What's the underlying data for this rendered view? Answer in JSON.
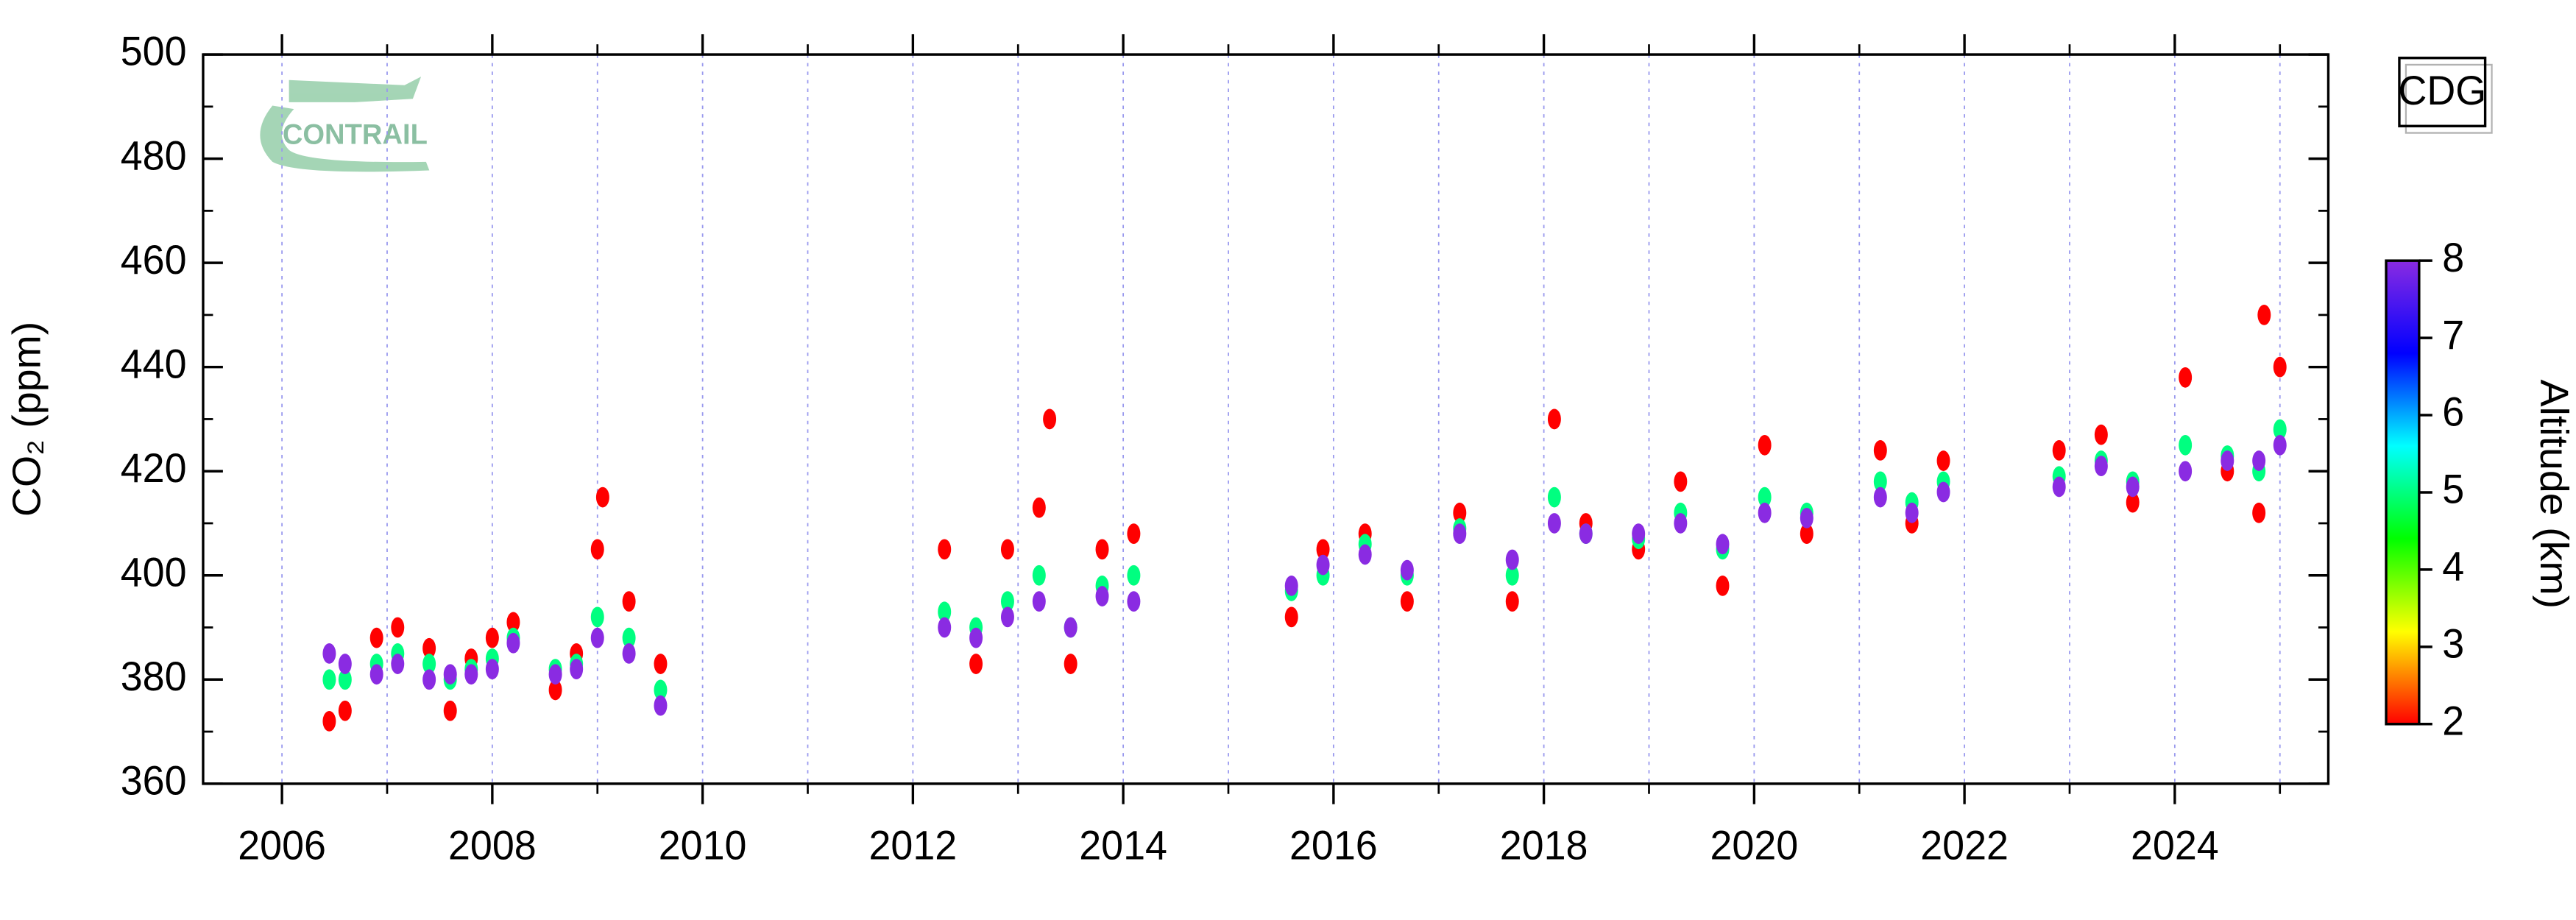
{
  "chart_data": {
    "type": "scatter",
    "logo": "CONTRAIL",
    "station": "CDG",
    "ylabel": "CO₂ (ppm)",
    "colorbar_label": "Altitude (km)",
    "xlim": [
      2005.25,
      2025.46
    ],
    "xticks": [
      2006,
      2008,
      2010,
      2012,
      2014,
      2016,
      2018,
      2020,
      2022,
      2024
    ],
    "xminorticks": [
      2007,
      2009,
      2011,
      2013,
      2015,
      2017,
      2019,
      2021,
      2023,
      2025
    ],
    "ylim": [
      360,
      500
    ],
    "yticks": [
      360,
      380,
      400,
      420,
      440,
      460,
      480,
      500
    ],
    "yminorticks": [
      370,
      390,
      410,
      430,
      450,
      470,
      490
    ],
    "grid": true,
    "clim": [
      2,
      8
    ],
    "cticks": [
      2,
      3,
      4,
      5,
      6,
      7,
      8
    ],
    "colormap": [
      "#ff0000",
      "#ffff00",
      "#00ff00",
      "#00ffff",
      "#0000ff",
      "#8a2be2"
    ],
    "x": [
      2006.45,
      2006.45,
      2006.45,
      2006.6,
      2006.6,
      2006.6,
      2006.9,
      2006.9,
      2006.9,
      2007.1,
      2007.1,
      2007.1,
      2007.4,
      2007.4,
      2007.4,
      2007.6,
      2007.6,
      2007.6,
      2007.8,
      2007.8,
      2007.8,
      2008.0,
      2008.0,
      2008.0,
      2008.2,
      2008.2,
      2008.2,
      2008.6,
      2008.6,
      2008.6,
      2008.8,
      2008.8,
      2008.8,
      2009.0,
      2009.0,
      2009.0,
      2009.3,
      2009.3,
      2009.3,
      2009.6,
      2009.6,
      2009.6,
      2012.3,
      2012.3,
      2012.3,
      2012.6,
      2012.6,
      2012.6,
      2012.9,
      2012.9,
      2012.9,
      2013.2,
      2013.2,
      2013.2,
      2013.5,
      2013.5,
      2013.5,
      2013.8,
      2013.8,
      2013.8,
      2014.1,
      2014.1,
      2014.1,
      2015.6,
      2015.6,
      2015.6,
      2015.9,
      2015.9,
      2015.9,
      2016.3,
      2016.3,
      2016.3,
      2016.7,
      2016.7,
      2016.7,
      2017.2,
      2017.2,
      2017.2,
      2017.7,
      2017.7,
      2017.7,
      2018.1,
      2018.1,
      2018.1,
      2018.4,
      2018.4,
      2018.4,
      2018.9,
      2018.9,
      2018.9,
      2019.3,
      2019.3,
      2019.3,
      2019.7,
      2019.7,
      2019.7,
      2020.1,
      2020.1,
      2020.1,
      2020.5,
      2020.5,
      2020.5,
      2021.2,
      2021.2,
      2021.2,
      2021.5,
      2021.5,
      2021.5,
      2021.8,
      2021.8,
      2021.8,
      2022.9,
      2022.9,
      2022.9,
      2023.3,
      2023.3,
      2023.3,
      2023.6,
      2023.6,
      2023.6,
      2024.1,
      2024.1,
      2024.1,
      2024.5,
      2024.5,
      2024.5,
      2024.8,
      2024.8,
      2024.8,
      2025.0,
      2025.0,
      2025.0,
      2009.05,
      2013.3,
      2024.85
    ],
    "values": [
      372,
      380,
      385,
      374,
      380,
      383,
      388,
      383,
      381,
      390,
      385,
      383,
      386,
      383,
      380,
      374,
      380,
      381,
      384,
      382,
      381,
      388,
      384,
      382,
      391,
      388,
      387,
      378,
      382,
      381,
      385,
      383,
      382,
      405,
      392,
      388,
      395,
      388,
      385,
      383,
      378,
      375,
      405,
      393,
      390,
      383,
      390,
      388,
      405,
      395,
      392,
      413,
      400,
      395,
      383,
      390,
      390,
      405,
      398,
      396,
      408,
      400,
      395,
      392,
      397,
      398,
      405,
      400,
      402,
      408,
      406,
      404,
      395,
      400,
      401,
      412,
      409,
      408,
      395,
      400,
      403,
      430,
      415,
      410,
      410,
      408,
      408,
      405,
      407,
      408,
      418,
      412,
      410,
      398,
      405,
      406,
      425,
      415,
      412,
      408,
      412,
      411,
      424,
      418,
      415,
      410,
      414,
      412,
      422,
      418,
      416,
      424,
      419,
      417,
      427,
      422,
      421,
      414,
      418,
      417,
      438,
      425,
      420,
      420,
      423,
      422,
      412,
      420,
      422,
      440,
      428,
      425,
      415,
      430,
      450
    ],
    "altitude": [
      2,
      5,
      8,
      2,
      5,
      8,
      2,
      5,
      8,
      2,
      5,
      8,
      2,
      5,
      8,
      2,
      5,
      8,
      2,
      5,
      8,
      2,
      5,
      8,
      2,
      5,
      8,
      2,
      5,
      8,
      2,
      5,
      8,
      2,
      5,
      8,
      2,
      5,
      8,
      2,
      5,
      8,
      2,
      5,
      8,
      2,
      5,
      8,
      2,
      5,
      8,
      2,
      5,
      8,
      2,
      5,
      8,
      2,
      5,
      8,
      2,
      5,
      8,
      2,
      5,
      8,
      2,
      5,
      8,
      2,
      5,
      8,
      2,
      5,
      8,
      2,
      5,
      8,
      2,
      5,
      8,
      2,
      5,
      8,
      2,
      5,
      8,
      2,
      5,
      8,
      2,
      5,
      8,
      2,
      5,
      8,
      2,
      5,
      8,
      2,
      5,
      8,
      2,
      5,
      8,
      2,
      5,
      8,
      2,
      5,
      8,
      2,
      5,
      8,
      2,
      5,
      8,
      2,
      5,
      8,
      2,
      5,
      8,
      2,
      5,
      8,
      2,
      5,
      8,
      2,
      5,
      8,
      2,
      2,
      2
    ]
  }
}
